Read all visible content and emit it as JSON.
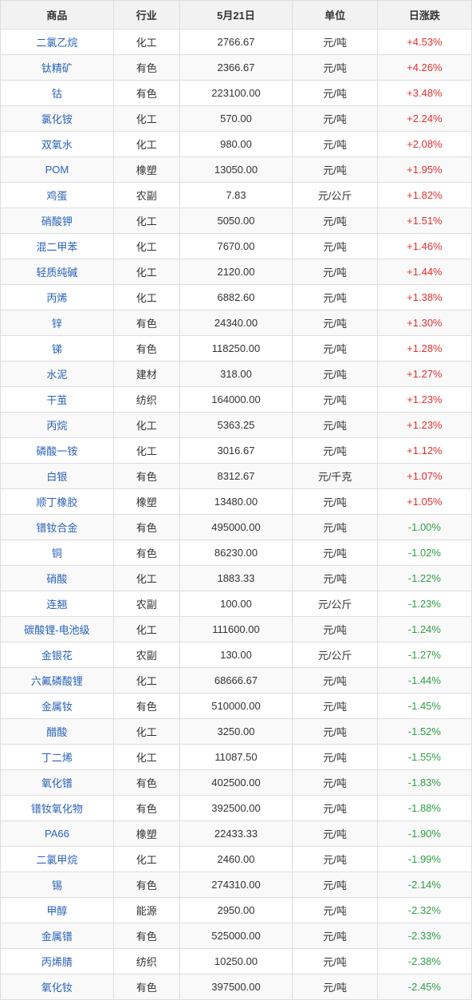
{
  "table": {
    "columns": [
      "商品",
      "行业",
      "5月21日",
      "单位",
      "日涨跌"
    ],
    "col_align": [
      "center",
      "center",
      "center",
      "center",
      "center"
    ],
    "link_color": "#2962b8",
    "pos_color": "#e03131",
    "neg_color": "#2f9e44",
    "header_bg": "#f2f2f2",
    "row_alt_bg": "#f9f9f9",
    "border_color": "#dddddd",
    "font_size": 13,
    "rows": [
      {
        "product": "二氯乙烷",
        "industry": "化工",
        "price": "2766.67",
        "unit": "元/吨",
        "change": "+4.53%",
        "dir": "pos"
      },
      {
        "product": "钛精矿",
        "industry": "有色",
        "price": "2366.67",
        "unit": "元/吨",
        "change": "+4.26%",
        "dir": "pos"
      },
      {
        "product": "钴",
        "industry": "有色",
        "price": "223100.00",
        "unit": "元/吨",
        "change": "+3.48%",
        "dir": "pos"
      },
      {
        "product": "氯化铵",
        "industry": "化工",
        "price": "570.00",
        "unit": "元/吨",
        "change": "+2.24%",
        "dir": "pos"
      },
      {
        "product": "双氧水",
        "industry": "化工",
        "price": "980.00",
        "unit": "元/吨",
        "change": "+2.08%",
        "dir": "pos"
      },
      {
        "product": "POM",
        "industry": "橡塑",
        "price": "13050.00",
        "unit": "元/吨",
        "change": "+1.95%",
        "dir": "pos"
      },
      {
        "product": "鸡蛋",
        "industry": "农副",
        "price": "7.83",
        "unit": "元/公斤",
        "change": "+1.82%",
        "dir": "pos"
      },
      {
        "product": "硝酸钾",
        "industry": "化工",
        "price": "5050.00",
        "unit": "元/吨",
        "change": "+1.51%",
        "dir": "pos"
      },
      {
        "product": "混二甲苯",
        "industry": "化工",
        "price": "7670.00",
        "unit": "元/吨",
        "change": "+1.46%",
        "dir": "pos"
      },
      {
        "product": "轻质纯碱",
        "industry": "化工",
        "price": "2120.00",
        "unit": "元/吨",
        "change": "+1.44%",
        "dir": "pos"
      },
      {
        "product": "丙烯",
        "industry": "化工",
        "price": "6882.60",
        "unit": "元/吨",
        "change": "+1.38%",
        "dir": "pos"
      },
      {
        "product": "锌",
        "industry": "有色",
        "price": "24340.00",
        "unit": "元/吨",
        "change": "+1.30%",
        "dir": "pos"
      },
      {
        "product": "锑",
        "industry": "有色",
        "price": "118250.00",
        "unit": "元/吨",
        "change": "+1.28%",
        "dir": "pos"
      },
      {
        "product": "水泥",
        "industry": "建材",
        "price": "318.00",
        "unit": "元/吨",
        "change": "+1.27%",
        "dir": "pos"
      },
      {
        "product": "干茧",
        "industry": "纺织",
        "price": "164000.00",
        "unit": "元/吨",
        "change": "+1.23%",
        "dir": "pos"
      },
      {
        "product": "丙烷",
        "industry": "化工",
        "price": "5363.25",
        "unit": "元/吨",
        "change": "+1.23%",
        "dir": "pos"
      },
      {
        "product": "磷酸一铵",
        "industry": "化工",
        "price": "3016.67",
        "unit": "元/吨",
        "change": "+1.12%",
        "dir": "pos"
      },
      {
        "product": "白银",
        "industry": "有色",
        "price": "8312.67",
        "unit": "元/千克",
        "change": "+1.07%",
        "dir": "pos"
      },
      {
        "product": "顺丁橡胶",
        "industry": "橡塑",
        "price": "13480.00",
        "unit": "元/吨",
        "change": "+1.05%",
        "dir": "pos"
      },
      {
        "product": "镨钕合金",
        "industry": "有色",
        "price": "495000.00",
        "unit": "元/吨",
        "change": "-1.00%",
        "dir": "neg"
      },
      {
        "product": "铜",
        "industry": "有色",
        "price": "86230.00",
        "unit": "元/吨",
        "change": "-1.02%",
        "dir": "neg"
      },
      {
        "product": "硝酸",
        "industry": "化工",
        "price": "1883.33",
        "unit": "元/吨",
        "change": "-1.22%",
        "dir": "neg"
      },
      {
        "product": "连翘",
        "industry": "农副",
        "price": "100.00",
        "unit": "元/公斤",
        "change": "-1.23%",
        "dir": "neg"
      },
      {
        "product": "碳酸锂-电池级",
        "industry": "化工",
        "price": "111600.00",
        "unit": "元/吨",
        "change": "-1.24%",
        "dir": "neg"
      },
      {
        "product": "金银花",
        "industry": "农副",
        "price": "130.00",
        "unit": "元/公斤",
        "change": "-1.27%",
        "dir": "neg"
      },
      {
        "product": "六氟磷酸锂",
        "industry": "化工",
        "price": "68666.67",
        "unit": "元/吨",
        "change": "-1.44%",
        "dir": "neg"
      },
      {
        "product": "金属钕",
        "industry": "有色",
        "price": "510000.00",
        "unit": "元/吨",
        "change": "-1.45%",
        "dir": "neg"
      },
      {
        "product": "醋酸",
        "industry": "化工",
        "price": "3250.00",
        "unit": "元/吨",
        "change": "-1.52%",
        "dir": "neg"
      },
      {
        "product": "丁二烯",
        "industry": "化工",
        "price": "11087.50",
        "unit": "元/吨",
        "change": "-1.55%",
        "dir": "neg"
      },
      {
        "product": "氧化镨",
        "industry": "有色",
        "price": "402500.00",
        "unit": "元/吨",
        "change": "-1.83%",
        "dir": "neg"
      },
      {
        "product": "镨钕氧化物",
        "industry": "有色",
        "price": "392500.00",
        "unit": "元/吨",
        "change": "-1.88%",
        "dir": "neg"
      },
      {
        "product": "PA66",
        "industry": "橡塑",
        "price": "22433.33",
        "unit": "元/吨",
        "change": "-1.90%",
        "dir": "neg"
      },
      {
        "product": "二氯甲烷",
        "industry": "化工",
        "price": "2460.00",
        "unit": "元/吨",
        "change": "-1.99%",
        "dir": "neg"
      },
      {
        "product": "锡",
        "industry": "有色",
        "price": "274310.00",
        "unit": "元/吨",
        "change": "-2.14%",
        "dir": "neg"
      },
      {
        "product": "甲醇",
        "industry": "能源",
        "price": "2950.00",
        "unit": "元/吨",
        "change": "-2.32%",
        "dir": "neg"
      },
      {
        "product": "金属镨",
        "industry": "有色",
        "price": "525000.00",
        "unit": "元/吨",
        "change": "-2.33%",
        "dir": "neg"
      },
      {
        "product": "丙烯腈",
        "industry": "纺织",
        "price": "10250.00",
        "unit": "元/吨",
        "change": "-2.38%",
        "dir": "neg"
      },
      {
        "product": "氧化钕",
        "industry": "有色",
        "price": "397500.00",
        "unit": "元/吨",
        "change": "-2.45%",
        "dir": "neg"
      }
    ]
  }
}
